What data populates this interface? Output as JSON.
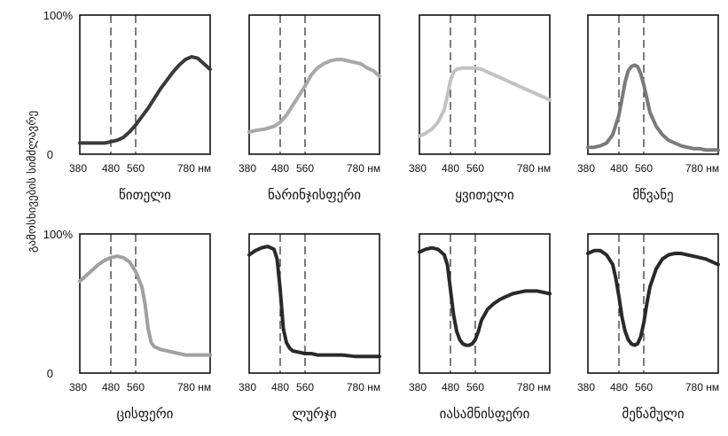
{
  "y_axis_label": "გამოსხივების სიმძლავრე",
  "chart_data": [
    {
      "type": "line",
      "title": "წითელი",
      "line_color": "#3a3a3a",
      "xlabel": "",
      "ylabel": "გამოსხივების სიმძლავრე",
      "x_ticks": [
        "380",
        "480",
        "560",
        "780 нм"
      ],
      "y_ticks": [
        "100%",
        "0"
      ],
      "xlim": [
        380,
        800
      ],
      "ylim": [
        0,
        100
      ],
      "dashed_x": [
        480,
        560
      ],
      "series": [
        {
          "x": [
            380,
            400,
            430,
            460,
            480,
            500,
            520,
            540,
            560,
            580,
            600,
            620,
            640,
            660,
            680,
            700,
            720,
            740,
            760,
            780,
            800
          ],
          "values": [
            8,
            8,
            8,
            8,
            9,
            10,
            12,
            16,
            21,
            27,
            33,
            40,
            47,
            53,
            59,
            64,
            68,
            70,
            69,
            65,
            61
          ]
        }
      ]
    },
    {
      "type": "line",
      "title": "ნარინჯისფერი",
      "line_color": "#a8a8a8",
      "xlabel": "",
      "ylabel": "",
      "x_ticks": [
        "380",
        "480",
        "560",
        "780 нм"
      ],
      "y_ticks": [],
      "xlim": [
        380,
        800
      ],
      "ylim": [
        0,
        100
      ],
      "dashed_x": [
        480,
        560
      ],
      "series": [
        {
          "x": [
            380,
            400,
            430,
            460,
            480,
            500,
            520,
            540,
            560,
            580,
            600,
            620,
            640,
            660,
            680,
            700,
            720,
            740,
            760,
            780,
            800
          ],
          "values": [
            16,
            17,
            18,
            20,
            23,
            28,
            35,
            42,
            49,
            57,
            62,
            65,
            67,
            68,
            68,
            67,
            66,
            65,
            62,
            60,
            56
          ]
        }
      ]
    },
    {
      "type": "line",
      "title": "ყვითელი",
      "line_color": "#c2c2c2",
      "xlabel": "",
      "ylabel": "",
      "x_ticks": [
        "380",
        "480",
        "560",
        "780 нм"
      ],
      "y_ticks": [],
      "xlim": [
        380,
        800
      ],
      "ylim": [
        0,
        100
      ],
      "dashed_x": [
        480,
        560
      ],
      "series": [
        {
          "x": [
            380,
            400,
            420,
            440,
            460,
            470,
            480,
            490,
            500,
            520,
            540,
            560,
            580,
            600,
            620,
            640,
            660,
            680,
            700,
            720,
            740,
            760,
            780,
            800
          ],
          "values": [
            13,
            15,
            18,
            23,
            32,
            42,
            53,
            59,
            61,
            62,
            62,
            62,
            61,
            59,
            57,
            55,
            53,
            51,
            49,
            47,
            45,
            43,
            41,
            39
          ]
        }
      ]
    },
    {
      "type": "line",
      "title": "მწვანე",
      "line_color": "#7a7a7a",
      "xlabel": "",
      "ylabel": "",
      "x_ticks": [
        "380",
        "480",
        "560",
        "780 нм"
      ],
      "y_ticks": [],
      "xlim": [
        380,
        800
      ],
      "ylim": [
        0,
        100
      ],
      "dashed_x": [
        480,
        560
      ],
      "series": [
        {
          "x": [
            380,
            400,
            420,
            440,
            460,
            480,
            490,
            500,
            510,
            520,
            530,
            540,
            550,
            560,
            570,
            580,
            600,
            620,
            640,
            660,
            680,
            700,
            720,
            740,
            760,
            780,
            800
          ],
          "values": [
            5,
            5,
            6,
            8,
            14,
            28,
            40,
            52,
            60,
            63,
            64,
            63,
            58,
            50,
            40,
            30,
            20,
            14,
            10,
            8,
            6,
            5,
            4,
            4,
            3,
            3,
            3
          ]
        }
      ]
    },
    {
      "type": "line",
      "title": "ცისფერი",
      "line_color": "#a0a0a0",
      "xlabel": "",
      "ylabel": "",
      "x_ticks": [
        "380",
        "480",
        "560",
        "780 нм"
      ],
      "y_ticks": [
        "100%",
        "0"
      ],
      "xlim": [
        380,
        800
      ],
      "ylim": [
        0,
        100
      ],
      "dashed_x": [
        480,
        560
      ],
      "series": [
        {
          "x": [
            380,
            400,
            420,
            440,
            460,
            480,
            500,
            520,
            540,
            560,
            580,
            590,
            600,
            610,
            620,
            640,
            660,
            680,
            700,
            720,
            740,
            760,
            780,
            800
          ],
          "values": [
            66,
            70,
            74,
            78,
            81,
            83,
            84,
            83,
            80,
            73,
            62,
            50,
            32,
            22,
            19,
            17,
            16,
            15,
            14,
            13,
            13,
            13,
            13,
            13
          ]
        }
      ]
    },
    {
      "type": "line",
      "title": "ლურჯი",
      "line_color": "#2a2a2a",
      "xlabel": "",
      "ylabel": "",
      "x_ticks": [
        "380",
        "480",
        "560",
        "780 нм"
      ],
      "y_ticks": [],
      "xlim": [
        380,
        800
      ],
      "ylim": [
        0,
        100
      ],
      "dashed_x": [
        480,
        560
      ],
      "series": [
        {
          "x": [
            380,
            400,
            420,
            440,
            460,
            470,
            480,
            490,
            500,
            510,
            520,
            540,
            560,
            580,
            600,
            640,
            680,
            720,
            760,
            800
          ],
          "values": [
            85,
            88,
            90,
            91,
            89,
            82,
            60,
            32,
            22,
            18,
            16,
            15,
            14,
            14,
            13,
            13,
            13,
            12,
            12,
            12
          ]
        }
      ]
    },
    {
      "type": "line",
      "title": "იასამნისფერი",
      "line_color": "#2a2a2a",
      "xlabel": "",
      "ylabel": "",
      "x_ticks": [
        "380",
        "480",
        "560",
        "780 нм"
      ],
      "y_ticks": [],
      "xlim": [
        380,
        800
      ],
      "ylim": [
        0,
        100
      ],
      "dashed_x": [
        480,
        560
      ],
      "series": [
        {
          "x": [
            380,
            400,
            420,
            440,
            460,
            470,
            480,
            490,
            500,
            510,
            520,
            530,
            540,
            550,
            560,
            570,
            580,
            600,
            620,
            640,
            660,
            680,
            700,
            720,
            740,
            760,
            780,
            800
          ],
          "values": [
            87,
            89,
            90,
            89,
            85,
            78,
            60,
            42,
            30,
            24,
            21,
            20,
            20,
            21,
            24,
            30,
            38,
            46,
            50,
            53,
            55,
            57,
            58,
            59,
            59,
            59,
            58,
            57
          ]
        }
      ]
    },
    {
      "type": "line",
      "title": "მეწამული",
      "line_color": "#2a2a2a",
      "xlabel": "",
      "ylabel": "",
      "x_ticks": [
        "380",
        "480",
        "560",
        "780 нм"
      ],
      "y_ticks": [],
      "xlim": [
        380,
        800
      ],
      "ylim": [
        0,
        100
      ],
      "dashed_x": [
        480,
        560
      ],
      "series": [
        {
          "x": [
            380,
            400,
            420,
            440,
            460,
            470,
            480,
            490,
            500,
            510,
            520,
            530,
            540,
            550,
            560,
            570,
            580,
            600,
            620,
            640,
            660,
            680,
            700,
            720,
            740,
            760,
            780,
            800
          ],
          "values": [
            86,
            88,
            88,
            85,
            78,
            68,
            55,
            40,
            30,
            24,
            21,
            20,
            21,
            26,
            36,
            50,
            62,
            75,
            82,
            85,
            86,
            86,
            85,
            84,
            83,
            82,
            80,
            78
          ]
        }
      ]
    }
  ]
}
